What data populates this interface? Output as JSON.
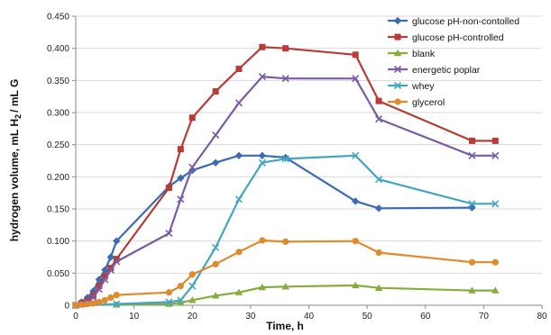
{
  "chart_data": {
    "type": "line",
    "xlabel": "Time, h",
    "ylabel_parts": {
      "prefix": "hydrogen volume, mL H",
      "sub": "2",
      "suffix": "/ mL G"
    },
    "xlim": [
      0,
      80
    ],
    "ylim": [
      0,
      0.45
    ],
    "xticks": [
      0,
      10,
      20,
      30,
      40,
      50,
      60,
      70,
      80
    ],
    "yticks": [
      0,
      0.05,
      0.1,
      0.15,
      0.2,
      0.25,
      0.3,
      0.35,
      0.4,
      0.45
    ],
    "yticklabels": [
      "0",
      "0.050",
      "0.100",
      "0.150",
      "0.200",
      "0.250",
      "0.300",
      "0.350",
      "0.400",
      "0.450"
    ],
    "grid": {
      "horizontal": true,
      "vertical": false
    },
    "legend_position": "top-right",
    "series": [
      {
        "name": "glucose pH-non-contolled",
        "color": "#3a6cb5",
        "marker": "diamond",
        "x": [
          0,
          1,
          2,
          3,
          4,
          5,
          6,
          7,
          16,
          18,
          20,
          24,
          28,
          32,
          36,
          48,
          52,
          68
        ],
        "y": [
          0,
          0.005,
          0.012,
          0.022,
          0.04,
          0.055,
          0.075,
          0.1,
          0.185,
          0.198,
          0.21,
          0.222,
          0.233,
          0.233,
          0.23,
          0.162,
          0.151,
          0.152
        ]
      },
      {
        "name": "glucose pH-controlled",
        "color": "#b83b37",
        "marker": "square",
        "x": [
          0,
          1,
          2,
          3,
          4,
          5,
          6,
          7,
          16,
          18,
          20,
          24,
          28,
          32,
          36,
          48,
          52,
          68,
          72
        ],
        "y": [
          0,
          0.003,
          0.007,
          0.015,
          0.03,
          0.045,
          0.058,
          0.072,
          0.183,
          0.243,
          0.292,
          0.333,
          0.368,
          0.402,
          0.4,
          0.39,
          0.318,
          0.256,
          0.256
        ]
      },
      {
        "name": "blank",
        "color": "#86ad3b",
        "marker": "triangle",
        "x": [
          0,
          7,
          16,
          18,
          20,
          24,
          28,
          32,
          36,
          48,
          52,
          68,
          72
        ],
        "y": [
          0,
          0.001,
          0.002,
          0.004,
          0.008,
          0.015,
          0.02,
          0.028,
          0.029,
          0.031,
          0.027,
          0.023,
          0.023
        ]
      },
      {
        "name": "energetic poplar",
        "color": "#7b5aa6",
        "marker": "x",
        "x": [
          0,
          1,
          2,
          3,
          4,
          5,
          6,
          7,
          16,
          18,
          20,
          24,
          28,
          32,
          36,
          48,
          52,
          68,
          72
        ],
        "y": [
          0,
          0.002,
          0.005,
          0.012,
          0.025,
          0.04,
          0.055,
          0.068,
          0.112,
          0.165,
          0.215,
          0.265,
          0.315,
          0.356,
          0.353,
          0.353,
          0.29,
          0.233,
          0.233
        ]
      },
      {
        "name": "whey",
        "color": "#43a6c0",
        "marker": "x",
        "x": [
          0,
          7,
          16,
          18,
          20,
          24,
          28,
          32,
          36,
          48,
          52,
          68,
          72
        ],
        "y": [
          0,
          0.002,
          0.005,
          0.008,
          0.03,
          0.09,
          0.165,
          0.222,
          0.228,
          0.233,
          0.196,
          0.158,
          0.158
        ]
      },
      {
        "name": "glycerol",
        "color": "#e08a2e",
        "marker": "circle",
        "x": [
          0,
          1,
          2,
          3,
          4,
          5,
          6,
          7,
          16,
          18,
          20,
          24,
          28,
          32,
          36,
          48,
          52,
          68,
          72
        ],
        "y": [
          0,
          0.001,
          0.002,
          0.003,
          0.005,
          0.008,
          0.012,
          0.016,
          0.02,
          0.03,
          0.048,
          0.064,
          0.083,
          0.101,
          0.099,
          0.1,
          0.082,
          0.067,
          0.067
        ]
      }
    ]
  }
}
